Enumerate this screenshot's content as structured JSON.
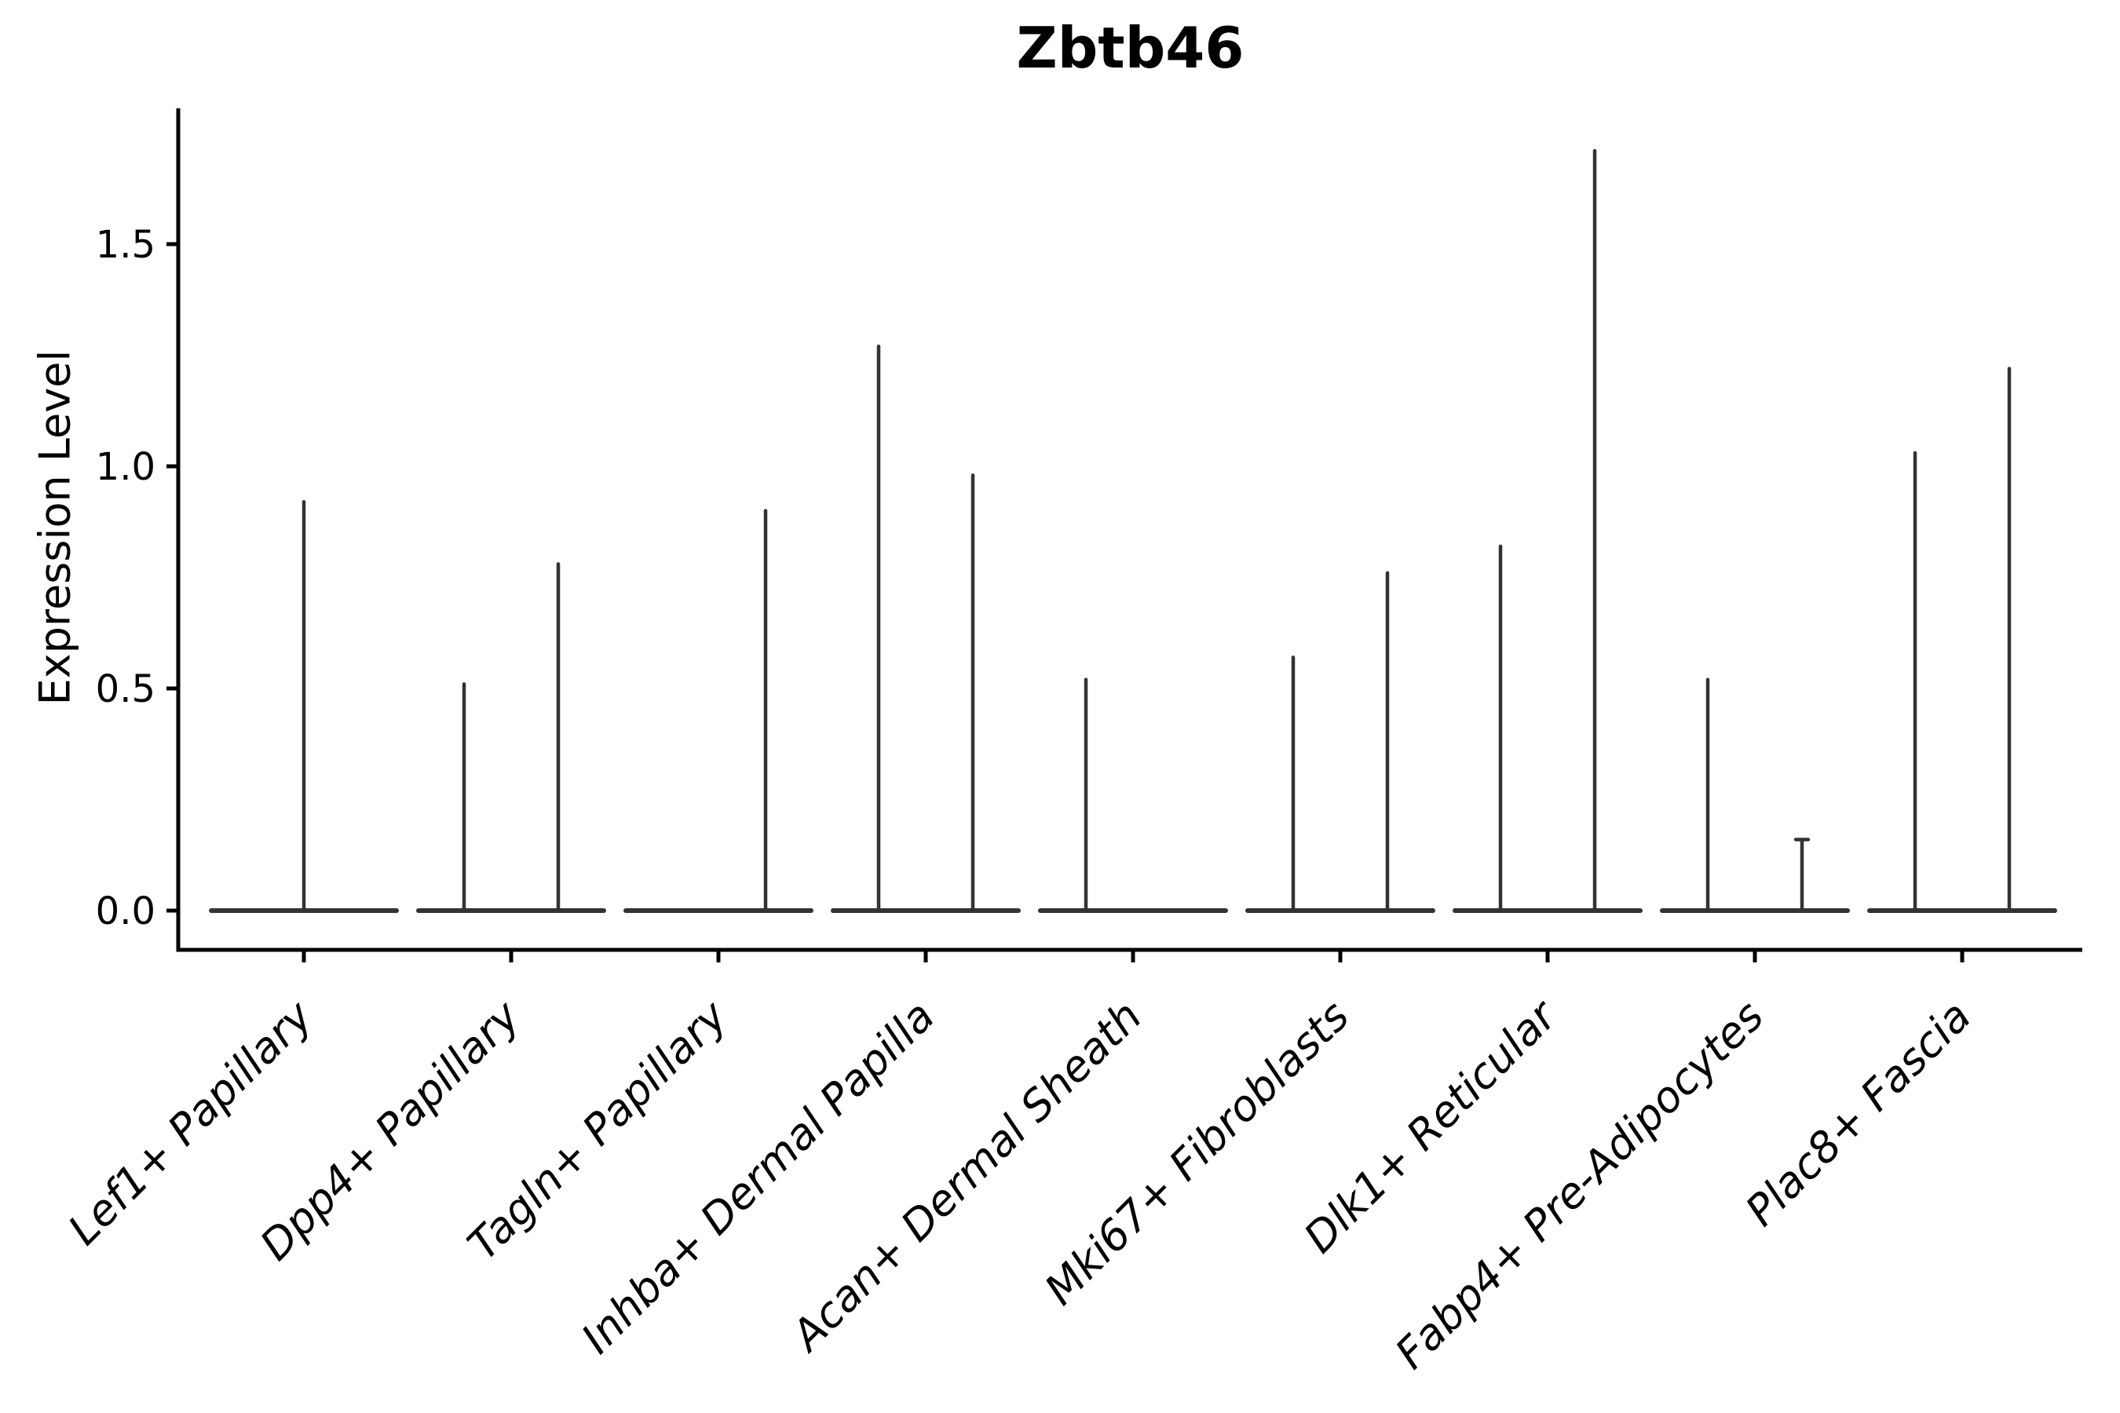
{
  "title": "Zbtb46",
  "y_axis": {
    "label": "Expression Level",
    "tick_labels": [
      "0.0",
      "0.5",
      "1.0",
      "1.5"
    ]
  },
  "chart_data": {
    "type": "violin",
    "title": "Zbtb46",
    "ylabel": "Expression Level",
    "xlabel": "",
    "ylim": [
      -0.09,
      1.81
    ],
    "yticks": [
      0.0,
      0.5,
      1.0,
      1.5
    ],
    "ytick_labels": [
      "0.0",
      "0.5",
      "1.0",
      "1.5"
    ],
    "grid": false,
    "legend": "none",
    "x_tick_rotation": 45,
    "x_tick_style": "italic",
    "colors": {
      "violin_stroke": "#333333",
      "axis": "#000000",
      "text": "#000000",
      "background": "#ffffff"
    },
    "categories": [
      "Lef1+ Papillary",
      "Dpp4+ Papillary",
      "Tagln+ Papillary",
      "Inhba+ Dermal Papilla",
      "Acan+ Dermal Sheath",
      "Mki67+ Fibroblasts",
      "Dlk1+ Reticular",
      "Fabp4+ Pre-Adipocytes",
      "Plac8+ Fascia"
    ],
    "violins": [
      {
        "category": "Lef1+ Papillary",
        "spikes": [
          {
            "position": "center",
            "max": 0.92
          }
        ]
      },
      {
        "category": "Dpp4+ Papillary",
        "spikes": [
          {
            "position": "left",
            "max": 0.51
          },
          {
            "position": "right",
            "max": 0.78
          }
        ]
      },
      {
        "category": "Tagln+ Papillary",
        "spikes": [
          {
            "position": "right",
            "max": 0.9
          }
        ]
      },
      {
        "category": "Inhba+ Dermal Papilla",
        "spikes": [
          {
            "position": "left",
            "max": 1.27
          },
          {
            "position": "right",
            "max": 0.98
          }
        ]
      },
      {
        "category": "Acan+ Dermal Sheath",
        "spikes": [
          {
            "position": "left",
            "max": 0.52
          }
        ]
      },
      {
        "category": "Mki67+ Fibroblasts",
        "spikes": [
          {
            "position": "left",
            "max": 0.57
          },
          {
            "position": "right",
            "max": 0.76
          }
        ]
      },
      {
        "category": "Dlk1+ Reticular",
        "spikes": [
          {
            "position": "left",
            "max": 0.82
          },
          {
            "position": "right",
            "max": 1.71
          }
        ]
      },
      {
        "category": "Fabp4+ Pre-Adipocytes",
        "spikes": [
          {
            "position": "left",
            "max": 0.52
          },
          {
            "position": "right",
            "max": 0.16,
            "capped": true
          }
        ]
      },
      {
        "category": "Plac8+ Fascia",
        "spikes": [
          {
            "position": "left",
            "max": 1.03
          },
          {
            "position": "right",
            "max": 1.22
          }
        ]
      }
    ]
  }
}
